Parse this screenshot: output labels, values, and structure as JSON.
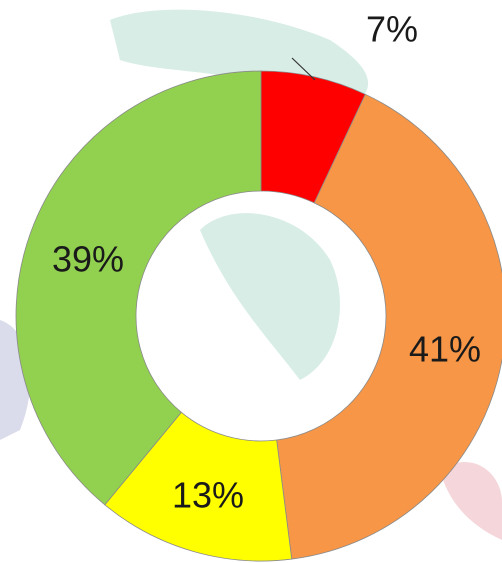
{
  "chart_data": {
    "type": "donut",
    "values": [
      7,
      41,
      13,
      39
    ],
    "value_labels": [
      "7%",
      "41%",
      "13%",
      "39%"
    ],
    "colors": [
      "#ff0000",
      "#f79646",
      "#ffff00",
      "#92d050"
    ]
  }
}
